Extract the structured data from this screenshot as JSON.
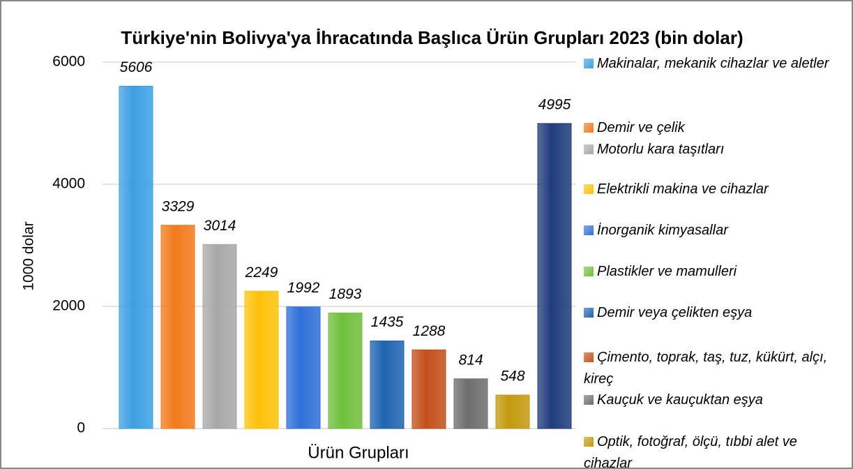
{
  "chart_data": {
    "type": "bar",
    "title": "Türkiye'nin Bolivya'ya İhracatında Başlıca Ürün Grupları 2023 (bin dolar)",
    "x_label": "Ürün Grupları",
    "y_label": "1000 dolar",
    "categories": [
      "Makinalar, mekanik cihazlar ve aletler",
      "Demir ve çelik",
      "Motorlu kara taşıtları",
      "Elektrikli makina ve cihazlar",
      "İnorganik kimyasallar",
      "Plastikler ve mamulleri",
      "Demir veya çelikten eşya",
      "Çimento, toprak, taş, tuz, kükürt, alçı, kireç",
      "Kauçuk ve kauçuktan eşya",
      "Optik, fotoğraf, ölçü, tıbbi alet ve cihazlar",
      null
    ],
    "values": [
      5606,
      3329,
      3014,
      2249,
      1992,
      1893,
      1435,
      1288,
      814,
      548,
      4995
    ],
    "colors": [
      "#3d9fe2",
      "#f27a1c",
      "#a8a8a8",
      "#ffc20a",
      "#2f70d9",
      "#70bf3d",
      "#1f64b0",
      "#c4501b",
      "#6e6e6e",
      "#c29a0f",
      "#1f3c7c"
    ],
    "ylim": [
      0,
      6000
    ],
    "yticks": [
      0,
      2000,
      4000,
      6000
    ],
    "grid": true,
    "legend": "right"
  }
}
